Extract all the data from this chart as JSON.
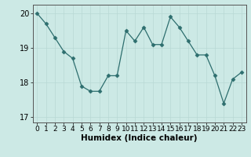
{
  "x": [
    0,
    1,
    2,
    3,
    4,
    5,
    6,
    7,
    8,
    9,
    10,
    11,
    12,
    13,
    14,
    15,
    16,
    17,
    18,
    19,
    20,
    21,
    22,
    23
  ],
  "y": [
    20.0,
    19.7,
    19.3,
    18.9,
    18.7,
    17.9,
    17.75,
    17.75,
    18.2,
    18.2,
    19.5,
    19.2,
    19.6,
    19.1,
    19.1,
    19.9,
    19.6,
    19.2,
    18.8,
    18.8,
    18.2,
    17.4,
    18.1,
    18.3
  ],
  "xlabel": "Humidex (Indice chaleur)",
  "ylim": [
    16.85,
    20.25
  ],
  "xlim": [
    -0.5,
    23.5
  ],
  "yticks": [
    17,
    18,
    19,
    20
  ],
  "xticks": [
    0,
    1,
    2,
    3,
    4,
    5,
    6,
    7,
    8,
    9,
    10,
    11,
    12,
    13,
    14,
    15,
    16,
    17,
    18,
    19,
    20,
    21,
    22,
    23
  ],
  "line_color": "#2d6e6e",
  "marker": "D",
  "marker_size": 2.5,
  "bg_color": "#cce9e5",
  "grid_color": "#b8d8d4",
  "tick_fontsize": 6.5,
  "xlabel_fontsize": 7.5,
  "ytick_fontsize": 7
}
